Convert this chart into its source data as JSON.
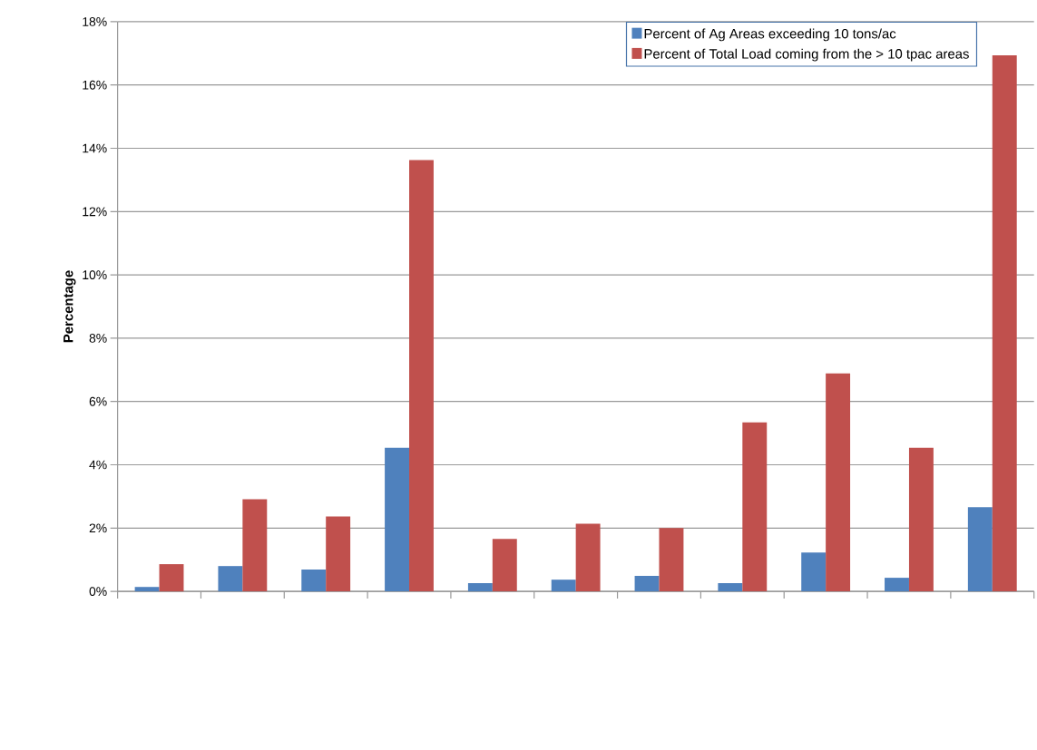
{
  "chart_data": {
    "type": "bar",
    "ylabel": "Percentage",
    "categories": [
      null,
      null,
      null,
      null,
      null,
      null,
      null,
      null,
      null,
      null,
      null
    ],
    "series": [
      {
        "name": "Percent of Ag Areas exceeding 10 tons/ac",
        "color": "#4f81bd",
        "values": [
          0.14,
          0.8,
          0.69,
          4.54,
          0.26,
          0.37,
          0.49,
          0.26,
          1.23,
          0.43,
          2.66
        ]
      },
      {
        "name": "Percent of Total Load coming from the > 10 tpac areas",
        "color": "#c0504d",
        "values": [
          0.86,
          2.91,
          2.37,
          13.63,
          1.66,
          2.14,
          2.0,
          5.34,
          6.89,
          4.54,
          16.94
        ]
      }
    ],
    "ylim": [
      0,
      18
    ],
    "yticks": [
      {
        "value": 0,
        "label": "0%"
      },
      {
        "value": 2,
        "label": "2%"
      },
      {
        "value": 4,
        "label": "4%"
      },
      {
        "value": 6,
        "label": "6%"
      },
      {
        "value": 8,
        "label": "8%"
      },
      {
        "value": 10,
        "label": "10%"
      },
      {
        "value": 12,
        "label": "12%"
      },
      {
        "value": 14,
        "label": "14%"
      },
      {
        "value": 16,
        "label": "16%"
      },
      {
        "value": 18,
        "label": "18%"
      }
    ],
    "grid": "y",
    "legend": "top right"
  }
}
